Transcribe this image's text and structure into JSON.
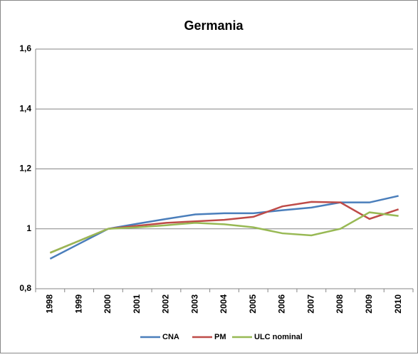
{
  "chart_data": {
    "type": "line",
    "title": "Germania",
    "categories": [
      "1998",
      "1999",
      "2000",
      "2001",
      "2002",
      "2003",
      "2004",
      "2005",
      "2006",
      "2007",
      "2008",
      "2009",
      "2010"
    ],
    "series": [
      {
        "name": "CNA",
        "color": "#4a7ebb",
        "values": [
          0.9,
          0.95,
          1.0,
          1.017,
          1.033,
          1.048,
          1.052,
          1.052,
          1.062,
          1.071,
          1.088,
          1.088,
          1.11
        ]
      },
      {
        "name": "PM",
        "color": "#be4b48",
        "values": [
          0.92,
          0.96,
          1.0,
          1.01,
          1.02,
          1.025,
          1.03,
          1.04,
          1.075,
          1.09,
          1.088,
          1.033,
          1.065
        ]
      },
      {
        "name": "ULC nominal",
        "color": "#98b954",
        "values": [
          0.92,
          0.96,
          1.0,
          1.005,
          1.012,
          1.02,
          1.015,
          1.005,
          0.985,
          0.978,
          1.0,
          1.055,
          1.043
        ]
      }
    ],
    "ylim": [
      0.8,
      1.6
    ],
    "yticks": [
      {
        "value": 0.8,
        "label": "0,8"
      },
      1,
      {
        "value": 1.2,
        "label": "1,2"
      },
      {
        "value": 1.4,
        "label": "1,4"
      },
      {
        "value": 1.6,
        "label": "1,6"
      }
    ],
    "grid": true,
    "legend": "bottom"
  }
}
